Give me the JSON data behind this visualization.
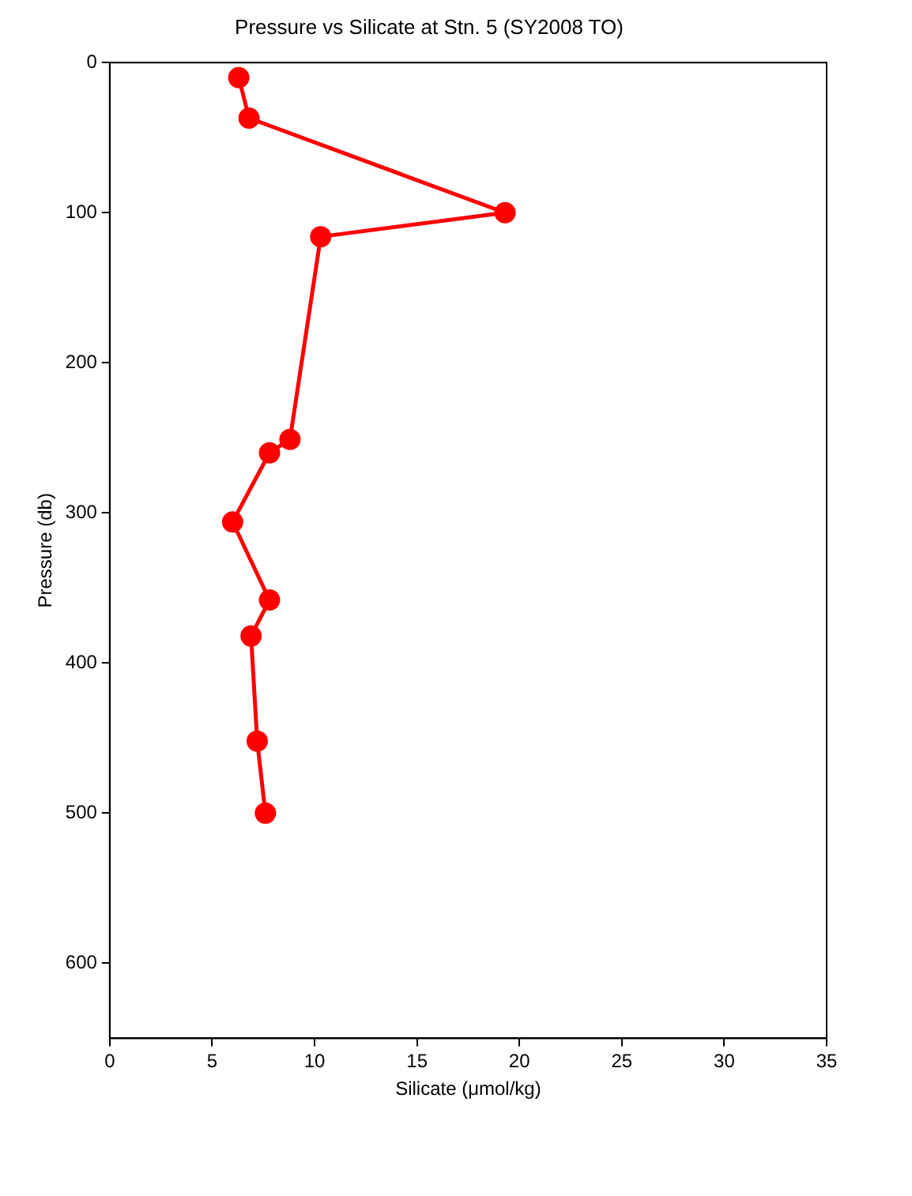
{
  "chart_data": {
    "type": "line",
    "title": "Pressure vs Silicate at Stn. 5 (SY2008 TO)",
    "xlabel": "Silicate (μmol/kg)",
    "ylabel": "Pressure (db)",
    "x": [
      6.3,
      6.8,
      19.3,
      10.3,
      8.8,
      7.8,
      6.0,
      7.8,
      6.9,
      7.2,
      7.6
    ],
    "values": [
      10,
      37,
      100,
      116,
      251,
      260,
      306,
      358,
      382,
      452,
      500
    ],
    "color": "#ff0000",
    "marker": "circle",
    "line_style": "solid",
    "xlim": [
      0,
      35
    ],
    "xticks": [
      0,
      5,
      10,
      15,
      20,
      25,
      30,
      35
    ],
    "ylim": [
      650,
      0
    ],
    "yticks": [
      0,
      100,
      200,
      300,
      400,
      500,
      600
    ]
  }
}
